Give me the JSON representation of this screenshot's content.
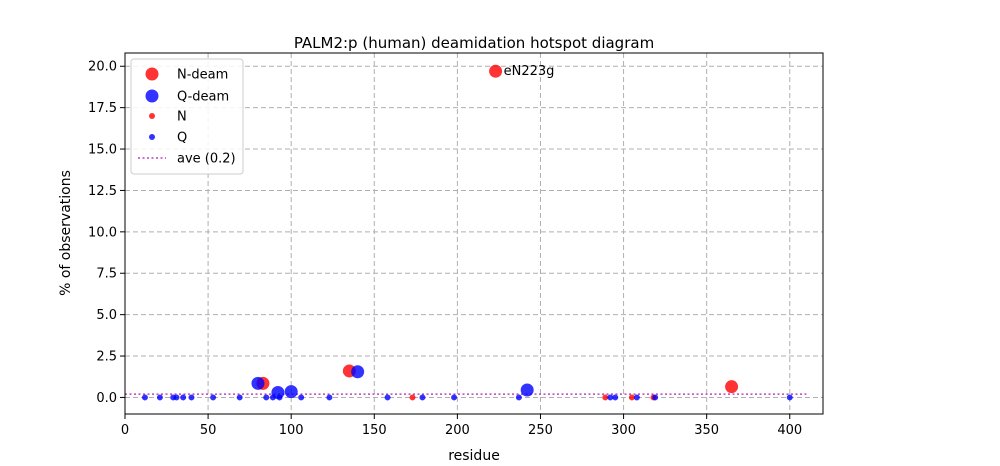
{
  "chart_data": {
    "type": "scatter",
    "title": "PALM2:p (human) deamidation hotspot diagram",
    "xlabel": "residue",
    "ylabel": "% of observations",
    "xlim": [
      0,
      420
    ],
    "ylim": [
      -1.0,
      20.8
    ],
    "xticks": [
      0,
      50,
      100,
      150,
      200,
      250,
      300,
      350,
      400
    ],
    "yticks": [
      0.0,
      2.5,
      5.0,
      7.5,
      10.0,
      12.5,
      15.0,
      17.5,
      20.0
    ],
    "ytick_labels": [
      "0.0",
      "2.5",
      "5.0",
      "7.5",
      "10.0",
      "12.5",
      "15.0",
      "17.5",
      "20.0"
    ],
    "grid": true,
    "legend_position": "top-left",
    "colors": {
      "N": "#ff0000",
      "Q": "#0000ff",
      "ave": "#bf40bf"
    },
    "series": [
      {
        "name": "N-deam",
        "color": "#ff0000",
        "marker": "large",
        "points": [
          [
            83,
            0.85
          ],
          [
            135,
            1.6
          ],
          [
            223,
            19.7
          ],
          [
            365,
            0.65
          ]
        ]
      },
      {
        "name": "Q-deam",
        "color": "#0000ff",
        "marker": "large",
        "points": [
          [
            80,
            0.85
          ],
          [
            92,
            0.3
          ],
          [
            100,
            0.35
          ],
          [
            140,
            1.55
          ],
          [
            242,
            0.45
          ]
        ]
      },
      {
        "name": "N",
        "color": "#ff0000",
        "marker": "small",
        "points": [
          [
            173,
            0.0
          ],
          [
            289,
            0.0
          ],
          [
            305,
            0.0
          ],
          [
            318,
            0.0
          ]
        ]
      },
      {
        "name": "Q",
        "color": "#0000ff",
        "marker": "small",
        "points": [
          [
            12,
            0
          ],
          [
            21,
            0
          ],
          [
            29,
            0
          ],
          [
            31,
            0
          ],
          [
            35,
            0
          ],
          [
            40,
            0
          ],
          [
            53,
            0
          ],
          [
            69,
            0
          ],
          [
            85,
            0
          ],
          [
            89,
            0
          ],
          [
            93,
            0
          ],
          [
            106,
            0
          ],
          [
            123,
            0
          ],
          [
            158,
            0
          ],
          [
            179,
            0
          ],
          [
            198,
            0
          ],
          [
            237,
            0
          ],
          [
            292,
            0
          ],
          [
            295,
            0
          ],
          [
            308,
            0
          ],
          [
            319,
            0
          ],
          [
            400,
            0
          ]
        ]
      },
      {
        "name": "ave (0.2)",
        "type": "hline",
        "color": "#bf40bf",
        "y": 0.2,
        "x_range": [
          0,
          410
        ]
      }
    ],
    "annotations": [
      {
        "text": "eN223g",
        "x": 223,
        "y": 19.7
      }
    ]
  }
}
